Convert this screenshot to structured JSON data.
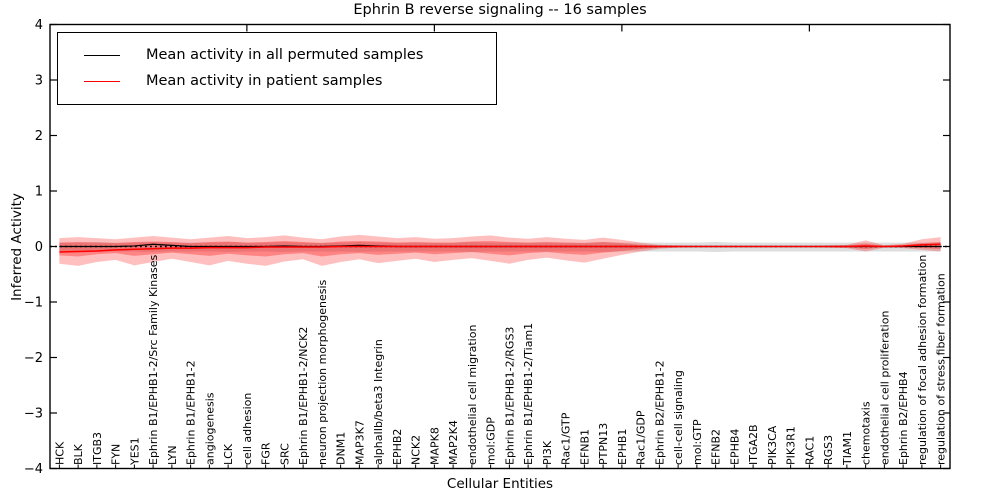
{
  "title": "Ephrin B reverse signaling -- 16 samples",
  "chart_data": {
    "type": "line",
    "title": "Ephrin B reverse signaling -- 16 samples",
    "xlabel": "Cellular Entities",
    "ylabel": "Inferred Activity",
    "ylim": [
      -4,
      4
    ],
    "yticks": [
      -4,
      -3,
      -2,
      -1,
      0,
      1,
      2,
      3,
      4
    ],
    "grid": false,
    "legend_position": "upper left",
    "zero_line": {
      "style": "dotted",
      "color": "#000000",
      "y": 0
    },
    "categories": [
      "HCK",
      "BLK",
      "ITGB3",
      "FYN",
      "YES1",
      "Ephrin B1/EPHB1-2/Src Family Kinases",
      "LYN",
      "Ephrin B1/EPHB1-2",
      "angiogenesis",
      "LCK",
      "cell adhesion",
      "FGR",
      "SRC",
      "Ephrin B1/EPHB1-2/NCK2",
      "neuron projection morphogenesis",
      "DNM1",
      "MAP3K7",
      "alphaIIb/beta3 Integrin",
      "EPHB2",
      "NCK2",
      "MAPK8",
      "MAP2K4",
      "endothelial cell migration",
      "mol:GDP",
      "Ephrin B1/EPHB1-2/RGS3",
      "Ephrin B1/EPHB1-2/Tiam1",
      "PI3K",
      "Rac1/GTP",
      "EFNB1",
      "PTPN13",
      "EPHB1",
      "Rac1/GDP",
      "Ephrin B2/EPHB1-2",
      "cell-cell signaling",
      "mol:GTP",
      "EFNB2",
      "EPHB4",
      "ITGA2B",
      "PIK3CA",
      "PIK3R1",
      "RAC1",
      "RGS3",
      "TIAM1",
      "chemotaxis",
      "endothelial cell proliferation",
      "Ephrin B2/EPHB4",
      "regulation of focal adhesion formation",
      "regulation of stress fiber formation"
    ],
    "series": [
      {
        "name": "Mean activity in all permuted samples",
        "color": "#000000",
        "values": [
          0,
          0,
          0,
          0,
          0.01,
          0.04,
          0.02,
          0,
          0,
          0,
          0,
          0,
          0.01,
          0,
          0,
          0.01,
          0.02,
          0.01,
          0,
          0,
          0,
          0,
          0,
          0,
          0,
          0,
          0,
          0,
          0,
          0,
          0,
          0,
          0,
          0,
          0,
          0,
          0,
          0,
          0,
          0,
          0,
          0,
          0,
          0,
          0,
          0,
          0,
          0
        ]
      },
      {
        "name": "Mean activity in patient samples",
        "color": "#ff0000",
        "values": [
          -0.1,
          -0.09,
          -0.08,
          -0.06,
          -0.05,
          -0.04,
          -0.03,
          -0.03,
          -0.02,
          -0.02,
          -0.02,
          -0.01,
          -0.01,
          -0.01,
          -0.01,
          0,
          0,
          0,
          0,
          0,
          0,
          0,
          0,
          0,
          0,
          0,
          0,
          0,
          0,
          0,
          0,
          0,
          0,
          0,
          0,
          0,
          0,
          0,
          0,
          0,
          0,
          0,
          0,
          0.01,
          0,
          0.01,
          0.03,
          0.04
        ]
      }
    ],
    "bands": [
      {
        "name": "permuted-sample-range",
        "color": "rgba(0,0,0,0.13)",
        "top": [
          0.07,
          0.07,
          0.08,
          0.07,
          0.07,
          0.08,
          0.07,
          0.07,
          0.07,
          0.08,
          0.07,
          0.07,
          0.08,
          0.07,
          0.07,
          0.07,
          0.08,
          0.07,
          0.07,
          0.07,
          0.07,
          0.07,
          0.08,
          0.07,
          0.07,
          0.07,
          0.07,
          0.07,
          0.07,
          0.08,
          0.07,
          0.07,
          0.07,
          0.07,
          0.07,
          0.08,
          0.07,
          0.07,
          0.07,
          0.07,
          0.07,
          0.07,
          0.07,
          0.07,
          0.07,
          0.07,
          0.07,
          0.07
        ],
        "bottom": [
          -0.09,
          -0.09,
          -0.1,
          -0.09,
          -0.09,
          -0.1,
          -0.09,
          -0.09,
          -0.09,
          -0.1,
          -0.09,
          -0.09,
          -0.1,
          -0.09,
          -0.09,
          -0.09,
          -0.1,
          -0.09,
          -0.09,
          -0.09,
          -0.09,
          -0.09,
          -0.1,
          -0.09,
          -0.09,
          -0.09,
          -0.09,
          -0.09,
          -0.09,
          -0.1,
          -0.09,
          -0.09,
          -0.09,
          -0.09,
          -0.09,
          -0.1,
          -0.09,
          -0.09,
          -0.09,
          -0.09,
          -0.09,
          -0.09,
          -0.09,
          -0.09,
          -0.09,
          -0.09,
          -0.09,
          -0.09
        ]
      },
      {
        "name": "patient-sample-range-outer",
        "color": "rgba(255,0,0,0.25)",
        "top": [
          0.15,
          0.17,
          0.15,
          0.13,
          0.16,
          0.19,
          0.16,
          0.13,
          0.16,
          0.19,
          0.15,
          0.17,
          0.2,
          0.16,
          0.13,
          0.18,
          0.21,
          0.18,
          0.15,
          0.17,
          0.14,
          0.15,
          0.18,
          0.2,
          0.16,
          0.14,
          0.17,
          0.14,
          0.12,
          0.16,
          0.12,
          0.07,
          0.03,
          0.02,
          0.01,
          0.01,
          0.01,
          0.01,
          0.01,
          0.01,
          0.01,
          0.02,
          0.03,
          0.11,
          0.02,
          0.05,
          0.13,
          0.17
        ],
        "bottom": [
          -0.31,
          -0.35,
          -0.28,
          -0.24,
          -0.34,
          -0.28,
          -0.22,
          -0.28,
          -0.34,
          -0.26,
          -0.31,
          -0.35,
          -0.27,
          -0.23,
          -0.35,
          -0.28,
          -0.23,
          -0.3,
          -0.26,
          -0.22,
          -0.28,
          -0.24,
          -0.21,
          -0.26,
          -0.31,
          -0.24,
          -0.2,
          -0.25,
          -0.29,
          -0.22,
          -0.15,
          -0.09,
          -0.04,
          -0.02,
          -0.01,
          -0.01,
          -0.01,
          -0.01,
          -0.01,
          -0.01,
          -0.01,
          -0.02,
          -0.03,
          -0.09,
          -0.02,
          -0.03,
          -0.06,
          -0.09
        ]
      },
      {
        "name": "patient-sample-range-inner",
        "color": "rgba(255,0,0,0.30)",
        "top": [
          0.07,
          0.08,
          0.07,
          0.06,
          0.08,
          0.09,
          0.08,
          0.06,
          0.08,
          0.09,
          0.07,
          0.08,
          0.1,
          0.08,
          0.06,
          0.09,
          0.1,
          0.09,
          0.07,
          0.08,
          0.07,
          0.07,
          0.09,
          0.1,
          0.08,
          0.07,
          0.08,
          0.07,
          0.06,
          0.08,
          0.06,
          0.03,
          0.015,
          0.01,
          0.005,
          0.005,
          0.005,
          0.005,
          0.005,
          0.005,
          0.005,
          0.01,
          0.015,
          0.05,
          0.01,
          0.025,
          0.06,
          0.08
        ],
        "bottom": [
          -0.16,
          -0.18,
          -0.14,
          -0.12,
          -0.17,
          -0.14,
          -0.11,
          -0.14,
          -0.17,
          -0.13,
          -0.16,
          -0.18,
          -0.14,
          -0.12,
          -0.18,
          -0.14,
          -0.12,
          -0.15,
          -0.13,
          -0.11,
          -0.14,
          -0.12,
          -0.1,
          -0.13,
          -0.16,
          -0.12,
          -0.1,
          -0.13,
          -0.15,
          -0.11,
          -0.08,
          -0.045,
          -0.02,
          -0.01,
          -0.005,
          -0.005,
          -0.005,
          -0.005,
          -0.005,
          -0.005,
          -0.005,
          -0.01,
          -0.015,
          -0.045,
          -0.01,
          -0.012,
          -0.03,
          -0.045
        ]
      }
    ],
    "top_axis_tick_indices": [
      10,
      20,
      30,
      40
    ]
  }
}
